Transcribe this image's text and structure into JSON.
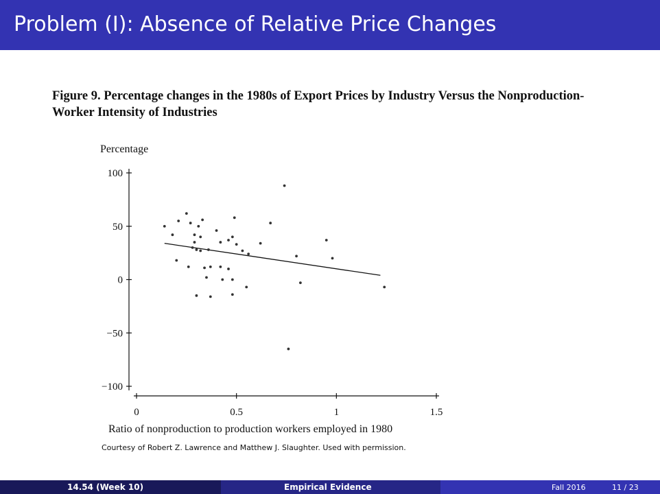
{
  "slide": {
    "title": "Problem (I): Absence of Relative Price Changes",
    "figure_caption": "Figure 9. Percentage changes in the 1980s of Export Prices by Industry Versus the Nonproduction-Worker Intensity of Industries",
    "courtesy": "Courtesy of Robert Z. Lawrence and Matthew J. Slaughter. Used with permission."
  },
  "footer": {
    "course": "14.54  (Week 10)",
    "section": "Empirical Evidence",
    "date": "Fall 2016",
    "page": "11 / 23"
  },
  "colors": {
    "title_bar": "#3333b2",
    "footer_left": "#191959",
    "footer_mid": "#262686",
    "footer_right": "#3333b2",
    "ink": "#111111"
  },
  "chart_data": {
    "type": "scatter",
    "title": "",
    "ylabel": "Percentage",
    "xlabel": "Ratio of nonproduction to production workers employed in 1980",
    "xlim": [
      0,
      1.5
    ],
    "ylim": [
      -100,
      100
    ],
    "x_ticks": [
      0,
      0.5,
      1,
      1.5
    ],
    "x_tick_labels": [
      "0",
      "0.5",
      "1",
      "1.5"
    ],
    "y_ticks": [
      100,
      50,
      0,
      -50,
      -100
    ],
    "y_tick_labels": [
      "100",
      "50",
      "0",
      "−50",
      "−100"
    ],
    "grid": false,
    "legend": "none",
    "points": [
      {
        "x": 0.14,
        "y": 50
      },
      {
        "x": 0.18,
        "y": 42
      },
      {
        "x": 0.21,
        "y": 55
      },
      {
        "x": 0.25,
        "y": 62
      },
      {
        "x": 0.27,
        "y": 53
      },
      {
        "x": 0.31,
        "y": 50
      },
      {
        "x": 0.33,
        "y": 56
      },
      {
        "x": 0.29,
        "y": 42
      },
      {
        "x": 0.29,
        "y": 35
      },
      {
        "x": 0.28,
        "y": 30
      },
      {
        "x": 0.3,
        "y": 28
      },
      {
        "x": 0.32,
        "y": 27
      },
      {
        "x": 0.32,
        "y": 40
      },
      {
        "x": 0.36,
        "y": 28
      },
      {
        "x": 0.4,
        "y": 46
      },
      {
        "x": 0.42,
        "y": 35
      },
      {
        "x": 0.46,
        "y": 37
      },
      {
        "x": 0.48,
        "y": 40
      },
      {
        "x": 0.5,
        "y": 33
      },
      {
        "x": 0.49,
        "y": 58
      },
      {
        "x": 0.53,
        "y": 27
      },
      {
        "x": 0.56,
        "y": 24
      },
      {
        "x": 0.62,
        "y": 34
      },
      {
        "x": 0.67,
        "y": 53
      },
      {
        "x": 0.74,
        "y": 88
      },
      {
        "x": 0.8,
        "y": 22
      },
      {
        "x": 0.95,
        "y": 37
      },
      {
        "x": 0.98,
        "y": 20
      },
      {
        "x": 0.2,
        "y": 18
      },
      {
        "x": 0.26,
        "y": 12
      },
      {
        "x": 0.34,
        "y": 11
      },
      {
        "x": 0.37,
        "y": 12
      },
      {
        "x": 0.42,
        "y": 12
      },
      {
        "x": 0.46,
        "y": 10
      },
      {
        "x": 0.35,
        "y": 2
      },
      {
        "x": 0.43,
        "y": 0
      },
      {
        "x": 0.48,
        "y": 0
      },
      {
        "x": 0.55,
        "y": -7
      },
      {
        "x": 0.82,
        "y": -3
      },
      {
        "x": 1.24,
        "y": -7
      },
      {
        "x": 0.3,
        "y": -15
      },
      {
        "x": 0.37,
        "y": -16
      },
      {
        "x": 0.48,
        "y": -14
      },
      {
        "x": 0.76,
        "y": -65
      }
    ],
    "fit_line": [
      {
        "x": 0.14,
        "y": 34
      },
      {
        "x": 1.22,
        "y": 4
      }
    ]
  }
}
